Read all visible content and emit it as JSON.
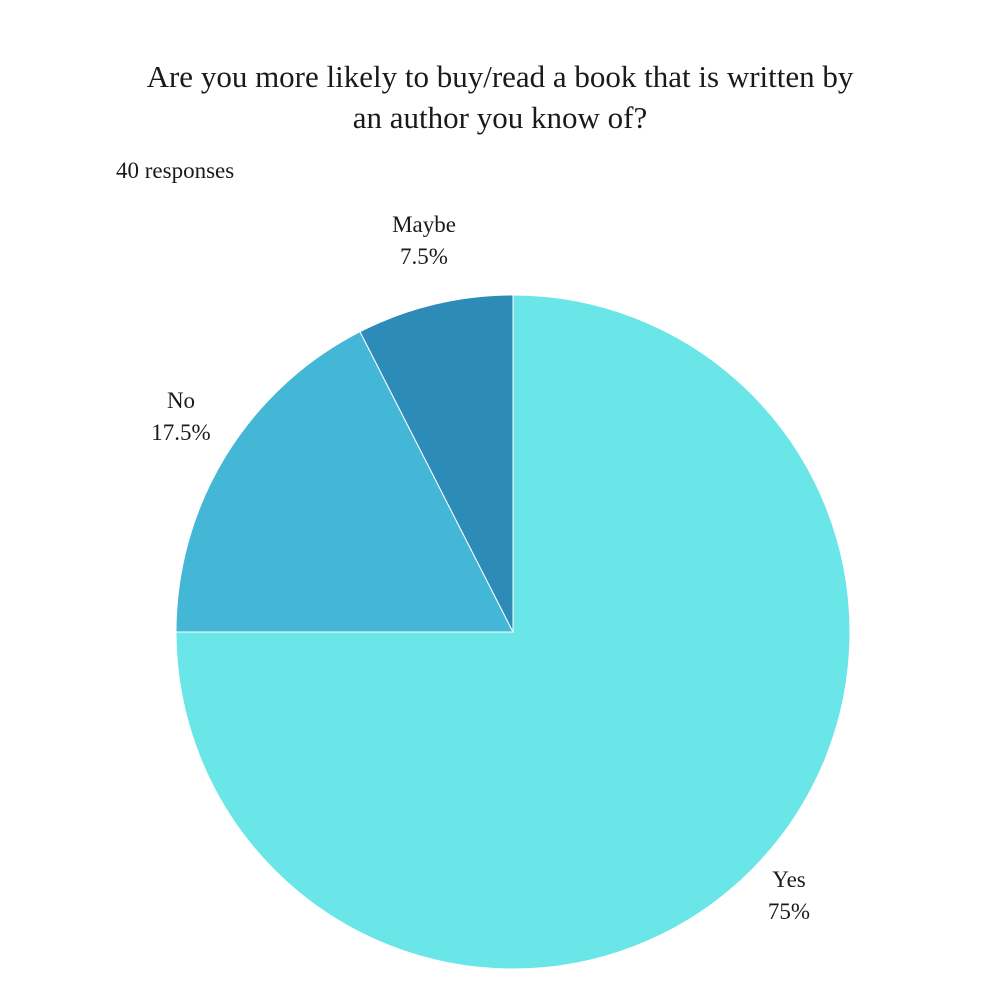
{
  "title_lines": [
    "Are you more likely to buy/read a book that is written by",
    "an author you know of?"
  ],
  "responses_text": "40 responses",
  "chart_data": {
    "type": "pie",
    "title": "Are you more likely to buy/read a book that is written by an author you know of?",
    "slices": [
      {
        "label": "Yes",
        "value": 75,
        "percent_label": "75%",
        "color": "#6AE5E8"
      },
      {
        "label": "No",
        "value": 17.5,
        "percent_label": "17.5%",
        "color": "#43B7D5"
      },
      {
        "label": "Maybe",
        "value": 7.5,
        "percent_label": "7.5%",
        "color": "#2C8BB7"
      }
    ],
    "start": "12 o'clock",
    "direction": "clockwise",
    "label_placement": "outside"
  }
}
